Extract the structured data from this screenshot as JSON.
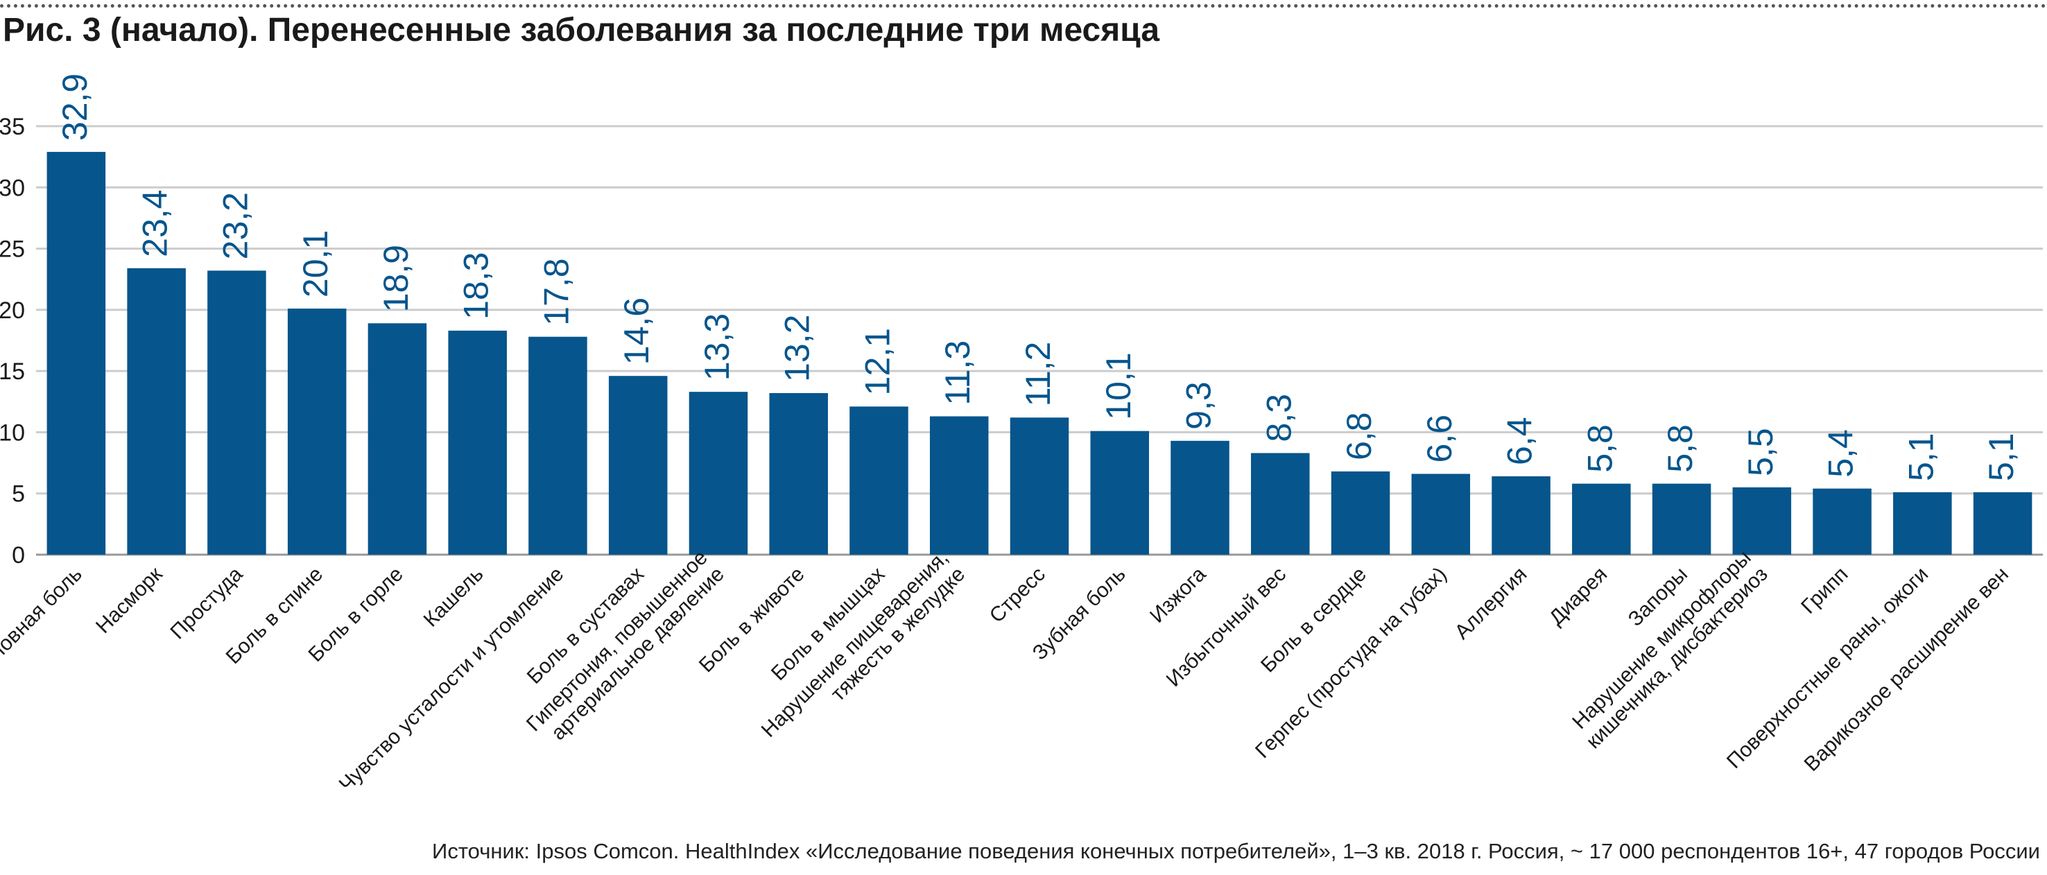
{
  "figure": {
    "title": "Рис. 3 (начало). Перенесенные заболевания за последние три месяца",
    "source": "Источник: Ipsos Comcon. HealthIndex «Исследование поведения конечных потребителей», 1–3 кв. 2018 г. Россия, ~ 17 000 респондентов 16+, 47 городов России"
  },
  "colors": {
    "bar": "#06558c",
    "label": "#06558c",
    "grid": "#cccccc",
    "axis": "#999999",
    "text": "#1a1a1a"
  },
  "chart_data": {
    "type": "bar",
    "title": "Рис. 3 (начало). Перенесенные заболевания за последние три месяца",
    "xlabel": "",
    "ylabel": "",
    "ylim": [
      0,
      35
    ],
    "yticks": [
      0,
      5,
      10,
      15,
      20,
      25,
      30,
      35
    ],
    "grid": true,
    "categories": [
      [
        "Головная боль"
      ],
      [
        "Насморк"
      ],
      [
        "Простуда"
      ],
      [
        "Боль в спине"
      ],
      [
        "Боль в горле"
      ],
      [
        "Кашель"
      ],
      [
        "Чувство усталости и утомление"
      ],
      [
        "Боль в суставах"
      ],
      [
        "Гипертония, повышенное",
        "артериальное давление"
      ],
      [
        "Боль в животе"
      ],
      [
        "Боль в мышцах"
      ],
      [
        "Нарушение пищеварения,",
        "тяжесть в желудке"
      ],
      [
        "Стресс"
      ],
      [
        "Зубная боль"
      ],
      [
        "Изжога"
      ],
      [
        "Избыточный вес"
      ],
      [
        "Боль в сердце"
      ],
      [
        "Герпес (простуда на губах)"
      ],
      [
        "Аллергия"
      ],
      [
        "Диарея"
      ],
      [
        "Запоры"
      ],
      [
        "Нарушение микрофлоры",
        "кишечника, дисбактериоз"
      ],
      [
        "Грипп"
      ],
      [
        "Поверхностные раны, ожоги"
      ],
      [
        "Варикозное расширение вен"
      ]
    ],
    "values": [
      32.9,
      23.4,
      23.2,
      20.1,
      18.9,
      18.3,
      17.8,
      14.6,
      13.3,
      13.2,
      12.1,
      11.3,
      11.2,
      10.1,
      9.3,
      8.3,
      6.8,
      6.6,
      6.4,
      5.8,
      5.8,
      5.5,
      5.4,
      5.1,
      5.1
    ],
    "value_labels": [
      "32,9",
      "23,4",
      "23,2",
      "20,1",
      "18,9",
      "18,3",
      "17,8",
      "14,6",
      "13,3",
      "13,2",
      "12,1",
      "11,3",
      "11,2",
      "10,1",
      "9,3",
      "8,3",
      "6,8",
      "6,6",
      "6,4",
      "5,8",
      "5,8",
      "5,5",
      "5,4",
      "5,1",
      "5,1"
    ]
  }
}
